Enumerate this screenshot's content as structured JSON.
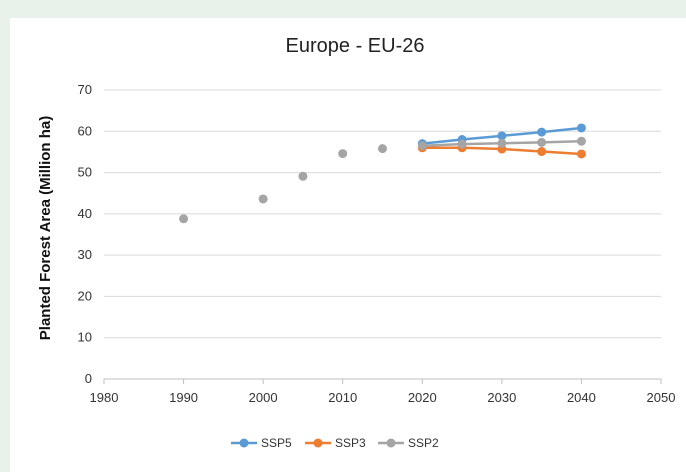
{
  "chart_data": {
    "type": "line",
    "title": "Europe - EU-26",
    "xlabel": "",
    "ylabel": "Planted Forest Area (Million ha)",
    "xlim": [
      1980,
      2050
    ],
    "ylim": [
      0,
      70
    ],
    "xticks": [
      1980,
      1990,
      2000,
      2010,
      2020,
      2030,
      2040,
      2050
    ],
    "yticks": [
      0,
      10,
      20,
      30,
      40,
      50,
      60,
      70
    ],
    "grid": "horizontal",
    "legend_position": "bottom",
    "historical": {
      "x": [
        1990,
        2000,
        2005,
        2010,
        2015
      ],
      "y": [
        38.8,
        43.6,
        49.1,
        54.6,
        55.8
      ],
      "color": "#a5a5a5"
    },
    "series": [
      {
        "name": "SSP5",
        "color": "#5b9bd5",
        "x": [
          2020,
          2025,
          2030,
          2035,
          2040
        ],
        "y": [
          57.0,
          58.0,
          58.9,
          59.8,
          60.8
        ]
      },
      {
        "name": "SSP3",
        "color": "#ed7d31",
        "x": [
          2020,
          2025,
          2030,
          2035,
          2040
        ],
        "y": [
          56.0,
          56.0,
          55.7,
          55.1,
          54.5
        ]
      },
      {
        "name": "SSP2",
        "color": "#a5a5a5",
        "x": [
          2020,
          2025,
          2030,
          2035,
          2040
        ],
        "y": [
          56.5,
          56.9,
          57.1,
          57.3,
          57.6
        ]
      }
    ]
  }
}
